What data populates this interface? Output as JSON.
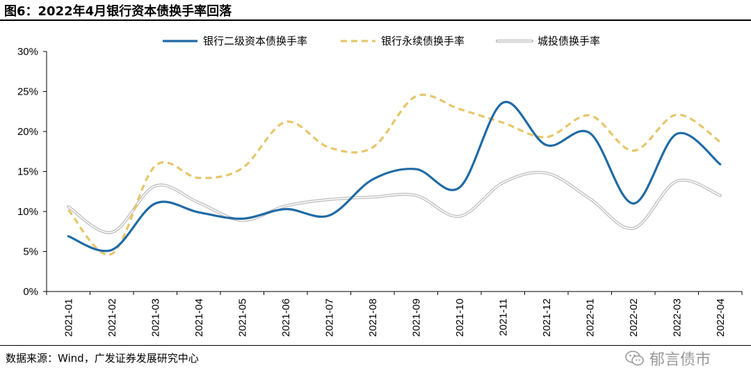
{
  "header": {
    "title": "图6：2022年4月银行资本债换手率回落"
  },
  "footer": {
    "source": "数据来源：Wind，广发证券发展研究中心",
    "watermark": "郁言债市"
  },
  "colors": {
    "bank_tier2": "#1f6aa5",
    "bank_perpetual": "#e6c66b",
    "lgfv": "#cfcfcf",
    "axis": "#000000"
  },
  "icons": {
    "watermark": "wechat-icon"
  },
  "chart_data": {
    "type": "line",
    "title": "图6：2022年4月银行资本债换手率回落",
    "xlabel": "",
    "ylabel": "",
    "ylim": [
      0,
      30
    ],
    "yticks": [
      "0%",
      "5%",
      "10%",
      "15%",
      "20%",
      "25%",
      "30%"
    ],
    "y_unit": "%",
    "grid": false,
    "legend_position": "top",
    "smooth": true,
    "categories": [
      "2021-01",
      "2021-02",
      "2021-03",
      "2021-04",
      "2021-05",
      "2021-06",
      "2021-07",
      "2021-08",
      "2021-09",
      "2021-10",
      "2021-11",
      "2021-12",
      "2022-01",
      "2022-02",
      "2022-03",
      "2022-04"
    ],
    "series": [
      {
        "name": "银行二级资本债换手率",
        "style": "solid",
        "values": [
          6.9,
          5.2,
          11.0,
          9.9,
          9.1,
          10.3,
          9.5,
          14.0,
          15.3,
          13.0,
          23.6,
          18.3,
          19.8,
          11.0,
          19.7,
          15.9
        ]
      },
      {
        "name": "银行永续债换手率",
        "style": "dashed",
        "values": [
          10.2,
          4.7,
          15.7,
          14.2,
          15.4,
          21.2,
          18.0,
          18.0,
          24.4,
          22.8,
          21.1,
          19.3,
          22.0,
          17.6,
          22.1,
          18.7
        ]
      },
      {
        "name": "城投债换手率",
        "style": "double",
        "values": [
          10.6,
          7.4,
          13.2,
          11.1,
          8.9,
          10.7,
          11.5,
          11.8,
          12.0,
          9.4,
          13.6,
          14.8,
          11.6,
          7.9,
          13.8,
          12.0
        ]
      }
    ]
  }
}
